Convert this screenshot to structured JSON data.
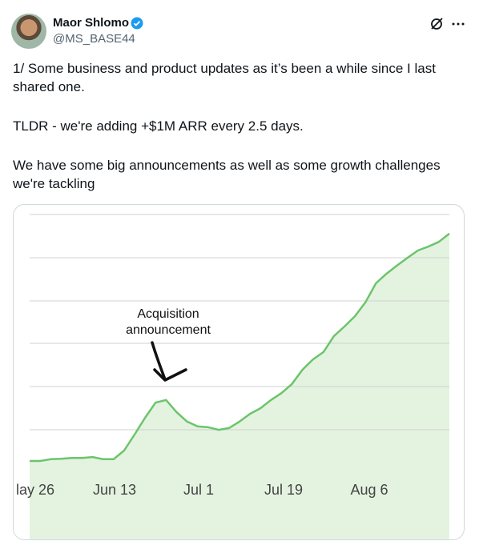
{
  "tweet": {
    "author": "Maor Shlomo",
    "handle": "@MS_BASE44",
    "paragraphs": [
      "1/ Some business and product updates as it’s been a while since I last shared one.",
      "TLDR - we're adding +$1M ARR every 2.5 days.",
      "We have some big announcements as well as some growth challenges we're tackling"
    ]
  },
  "chart_data": {
    "type": "line",
    "xtick_labels": [
      "lay 26",
      "Jun 13",
      "Jul 1",
      "Jul 19",
      "Aug 6"
    ],
    "annotation": [
      "Acquisition",
      "announcement"
    ],
    "series": [
      {
        "color": "#6cc46c",
        "values": [
          0.26,
          0.26,
          0.3,
          0.31,
          0.33,
          0.33,
          0.35,
          0.3,
          0.3,
          0.5,
          0.87,
          1.26,
          1.61,
          1.67,
          1.39,
          1.17,
          1.06,
          1.04,
          0.98,
          1.02,
          1.17,
          1.35,
          1.48,
          1.67,
          1.83,
          2.04,
          2.37,
          2.61,
          2.78,
          3.15,
          3.37,
          3.61,
          3.93,
          4.37,
          4.59,
          4.78,
          4.96,
          5.13,
          5.22,
          5.33,
          5.52
        ]
      }
    ],
    "fill_color": "#e4f3e0",
    "ylim": [
      0,
      6
    ]
  }
}
